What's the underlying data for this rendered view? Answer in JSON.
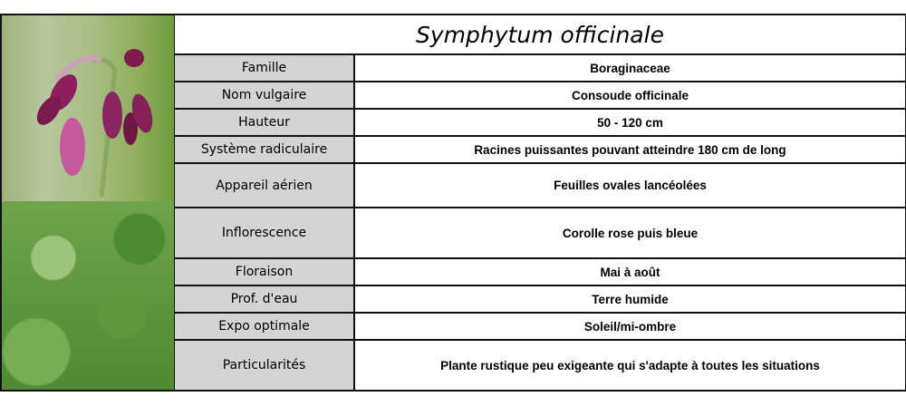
{
  "title": "Symphytum officinale",
  "photos": [
    "comfrey-flower-closeup",
    "comfrey-plant-foliage"
  ],
  "rows": [
    {
      "label": "Famille",
      "value": "Boraginaceae"
    },
    {
      "label": "Nom vulgaire",
      "value": "Consoude officinale"
    },
    {
      "label": "Hauteur",
      "value": "50 - 120 cm"
    },
    {
      "label": "Système radiculaire",
      "value": "Racines puissantes pouvant atteindre 180 cm de long"
    },
    {
      "label": "Appareil aérien",
      "value": "Feuilles ovales lancéolées"
    },
    {
      "label": "Inflorescence",
      "value": "Corolle rose puis bleue"
    },
    {
      "label": "Floraison",
      "value": "Mai à août"
    },
    {
      "label": "Prof. d'eau",
      "value": "Terre humide"
    },
    {
      "label": "Expo optimale",
      "value": "Soleil/mi-ombre"
    },
    {
      "label": "Particularités",
      "value": "Plante rustique peu exigeante qui s'adapte à toutes les situations"
    }
  ]
}
